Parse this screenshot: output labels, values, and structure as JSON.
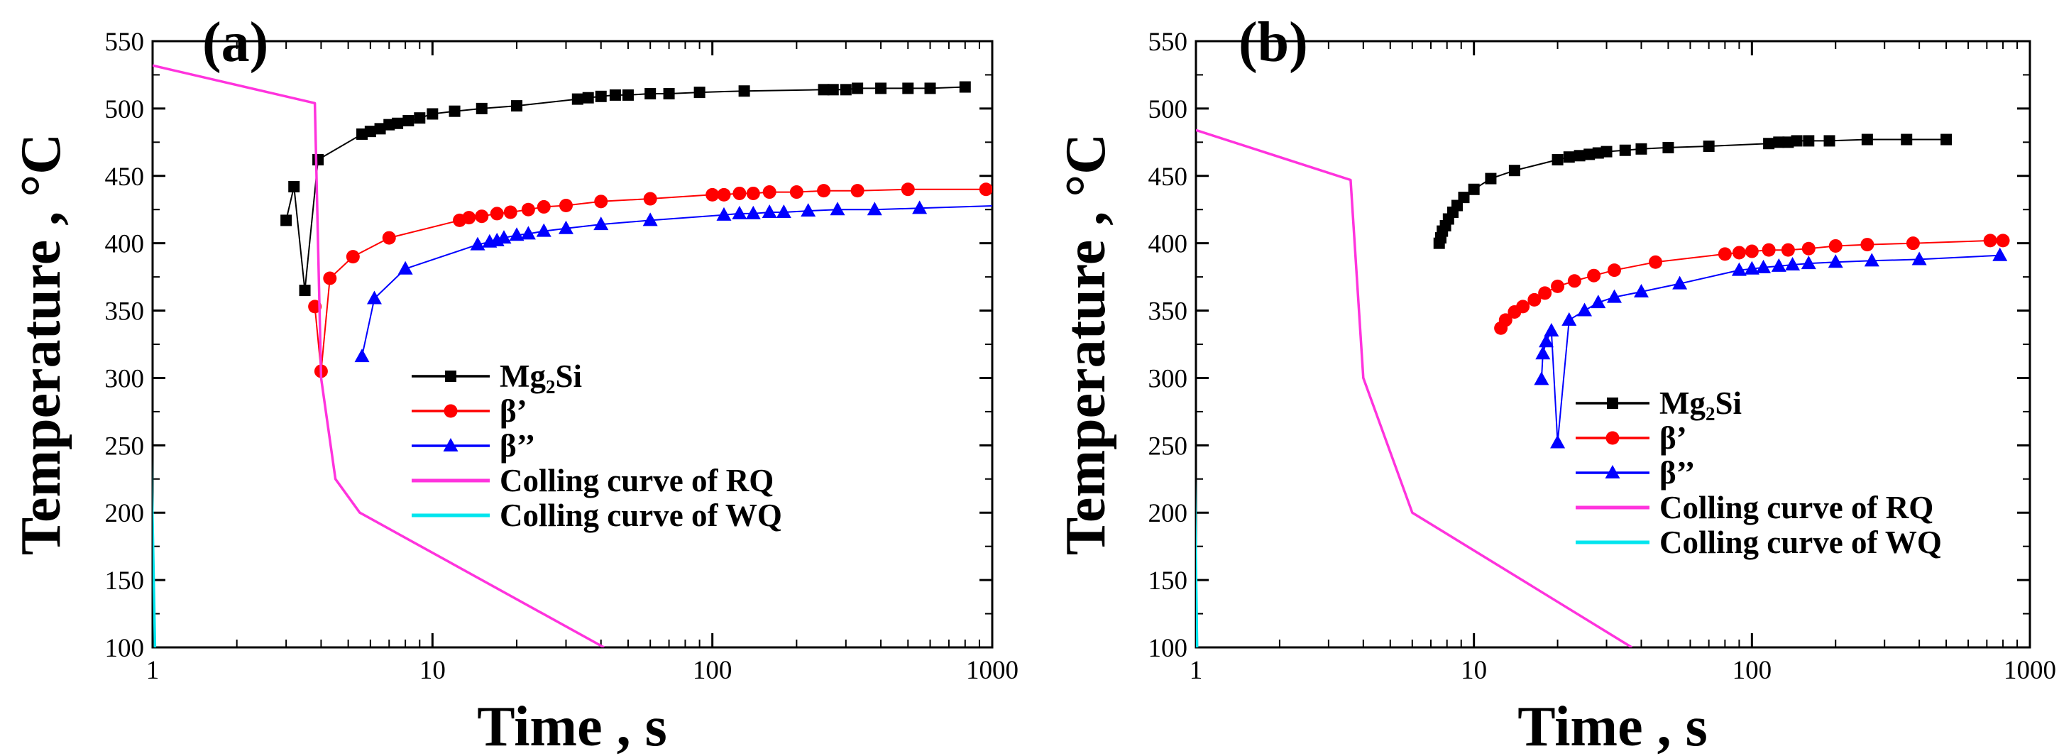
{
  "chart_data": [
    {
      "panel": "(a)",
      "type": "line",
      "xlabel": "Time , s",
      "ylabel": "Temperature , °C",
      "xscale": "log",
      "xlim": [
        1,
        1000
      ],
      "ylim": [
        100,
        550
      ],
      "xticks": [
        1,
        10,
        100,
        1000
      ],
      "xtick_labels": [
        "1",
        "10",
        "100",
        "1000"
      ],
      "yticks": [
        100,
        150,
        200,
        250,
        300,
        350,
        400,
        450,
        500,
        550
      ],
      "legend_position": "center-right",
      "series": [
        {
          "name": "Mg₂Si",
          "color": "#000000",
          "marker": "square",
          "x": [
            3.0,
            3.2,
            3.5,
            3.9,
            5.6,
            6.0,
            6.5,
            7.0,
            7.5,
            8.2,
            9.0,
            10.0,
            12.0,
            15.0,
            20.0,
            33.0,
            36.0,
            40.0,
            45.0,
            50.0,
            60.0,
            70.0,
            90.0,
            130.0,
            250.0,
            270.0,
            300.0,
            330.0,
            400.0,
            500.0,
            600.0,
            800.0
          ],
          "y": [
            417,
            442,
            365,
            462,
            481,
            483,
            485,
            488,
            489,
            491,
            493,
            496,
            498,
            500,
            502,
            507,
            508,
            509,
            510,
            510,
            511,
            511,
            512,
            513,
            514,
            514,
            514,
            515,
            515,
            515,
            515,
            516
          ]
        },
        {
          "name": "β’",
          "color": "#ff0000",
          "marker": "circle",
          "x": [
            3.8,
            4.0,
            4.3,
            5.2,
            7.0,
            12.5,
            13.5,
            15.0,
            17.0,
            19.0,
            22.0,
            25.0,
            30.0,
            40.0,
            60.0,
            100.0,
            110.0,
            125.0,
            140.0,
            160.0,
            200.0,
            250.0,
            330.0,
            500.0,
            950.0
          ],
          "y": [
            353,
            305,
            374,
            390,
            404,
            417,
            419,
            420,
            422,
            423,
            425,
            427,
            428,
            431,
            433,
            436,
            436,
            437,
            437,
            438,
            438,
            439,
            439,
            440,
            440
          ]
        },
        {
          "name": "β’’",
          "color": "#0000ff",
          "marker": "triangle",
          "x": [
            5.6,
            6.2,
            8.0,
            14.5,
            16.0,
            17.0,
            18.0,
            20.0,
            22.0,
            25.0,
            30.0,
            40.0,
            60.0,
            110.0,
            125.0,
            140.0,
            160.0,
            180.0,
            220.0,
            280.0,
            380.0,
            550.0,
            1100.0
          ],
          "y": [
            316,
            359,
            381,
            399,
            401,
            402,
            404,
            406,
            407,
            409,
            411,
            414,
            417,
            421,
            422,
            422,
            423,
            423,
            424,
            425,
            425,
            426,
            428
          ]
        },
        {
          "name": "Colling curve of RQ",
          "color": "#ff33dd",
          "marker": "none",
          "x": [
            1.0,
            3.8,
            4.0,
            4.5,
            5.5,
            41.0
          ],
          "y": [
            532,
            504,
            300,
            225,
            200,
            100
          ]
        },
        {
          "name": "Colling curve of WQ",
          "color": "#00e5ee",
          "marker": "none",
          "x": [
            0.92,
            0.93,
            1.02
          ],
          "y": [
            100,
            540,
            100
          ]
        }
      ]
    },
    {
      "panel": "(b)",
      "type": "line",
      "xlabel": "Time , s",
      "ylabel": "Temperature , °C",
      "xscale": "log",
      "xlim": [
        1,
        1000
      ],
      "ylim": [
        100,
        550
      ],
      "xticks": [
        1,
        10,
        100,
        1000
      ],
      "xtick_labels": [
        "1",
        "10",
        "100",
        "1000"
      ],
      "yticks": [
        100,
        150,
        200,
        250,
        300,
        350,
        400,
        450,
        500,
        550
      ],
      "legend_position": "center-right",
      "series": [
        {
          "name": "Mg₂Si",
          "color": "#000000",
          "marker": "square",
          "x": [
            7.5,
            7.6,
            7.7,
            7.9,
            8.1,
            8.4,
            8.7,
            9.2,
            10.0,
            11.5,
            14.0,
            20.0,
            22.0,
            24.0,
            26.0,
            28.0,
            30.0,
            35.0,
            40.0,
            50.0,
            70.0,
            115.0,
            125.0,
            135.0,
            145.0,
            160.0,
            190.0,
            260.0,
            360.0,
            500.0
          ],
          "y": [
            400,
            404,
            409,
            413,
            418,
            423,
            428,
            434,
            440,
            448,
            454,
            462,
            464,
            465,
            466,
            467,
            468,
            469,
            470,
            471,
            472,
            474,
            475,
            475,
            476,
            476,
            476,
            477,
            477,
            477
          ]
        },
        {
          "name": "β’",
          "color": "#ff0000",
          "marker": "circle",
          "x": [
            12.5,
            13.0,
            14.0,
            15.0,
            16.5,
            18.0,
            20.0,
            23.0,
            27.0,
            32.0,
            45.0,
            80.0,
            90.0,
            100.0,
            115.0,
            135.0,
            160.0,
            200.0,
            260.0,
            380.0,
            720.0,
            800.0
          ],
          "y": [
            337,
            343,
            349,
            353,
            358,
            363,
            368,
            372,
            376,
            380,
            386,
            392,
            393,
            394,
            395,
            395,
            396,
            398,
            399,
            400,
            402,
            402
          ]
        },
        {
          "name": "β’’",
          "color": "#0000ff",
          "marker": "triangle",
          "x": [
            17.5,
            17.7,
            18.2,
            19.0,
            20.0,
            22.0,
            25.0,
            28.0,
            32.0,
            40.0,
            55.0,
            90.0,
            100.0,
            110.0,
            125.0,
            140.0,
            160.0,
            200.0,
            270.0,
            400.0,
            780.0
          ],
          "y": [
            299,
            318,
            327,
            335,
            252,
            343,
            350,
            356,
            360,
            364,
            370,
            380,
            381,
            382,
            383,
            384,
            385,
            386,
            387,
            388,
            391
          ]
        },
        {
          "name": "Colling curve of RQ",
          "color": "#ff33dd",
          "marker": "none",
          "x": [
            1.0,
            3.6,
            4.0,
            6.0,
            37.0
          ],
          "y": [
            484,
            447,
            300,
            200,
            100
          ]
        },
        {
          "name": "Colling curve of WQ",
          "color": "#00e5ee",
          "marker": "none",
          "x": [
            0.93,
            0.95,
            1.01
          ],
          "y": [
            100,
            478,
            100
          ]
        }
      ]
    }
  ]
}
